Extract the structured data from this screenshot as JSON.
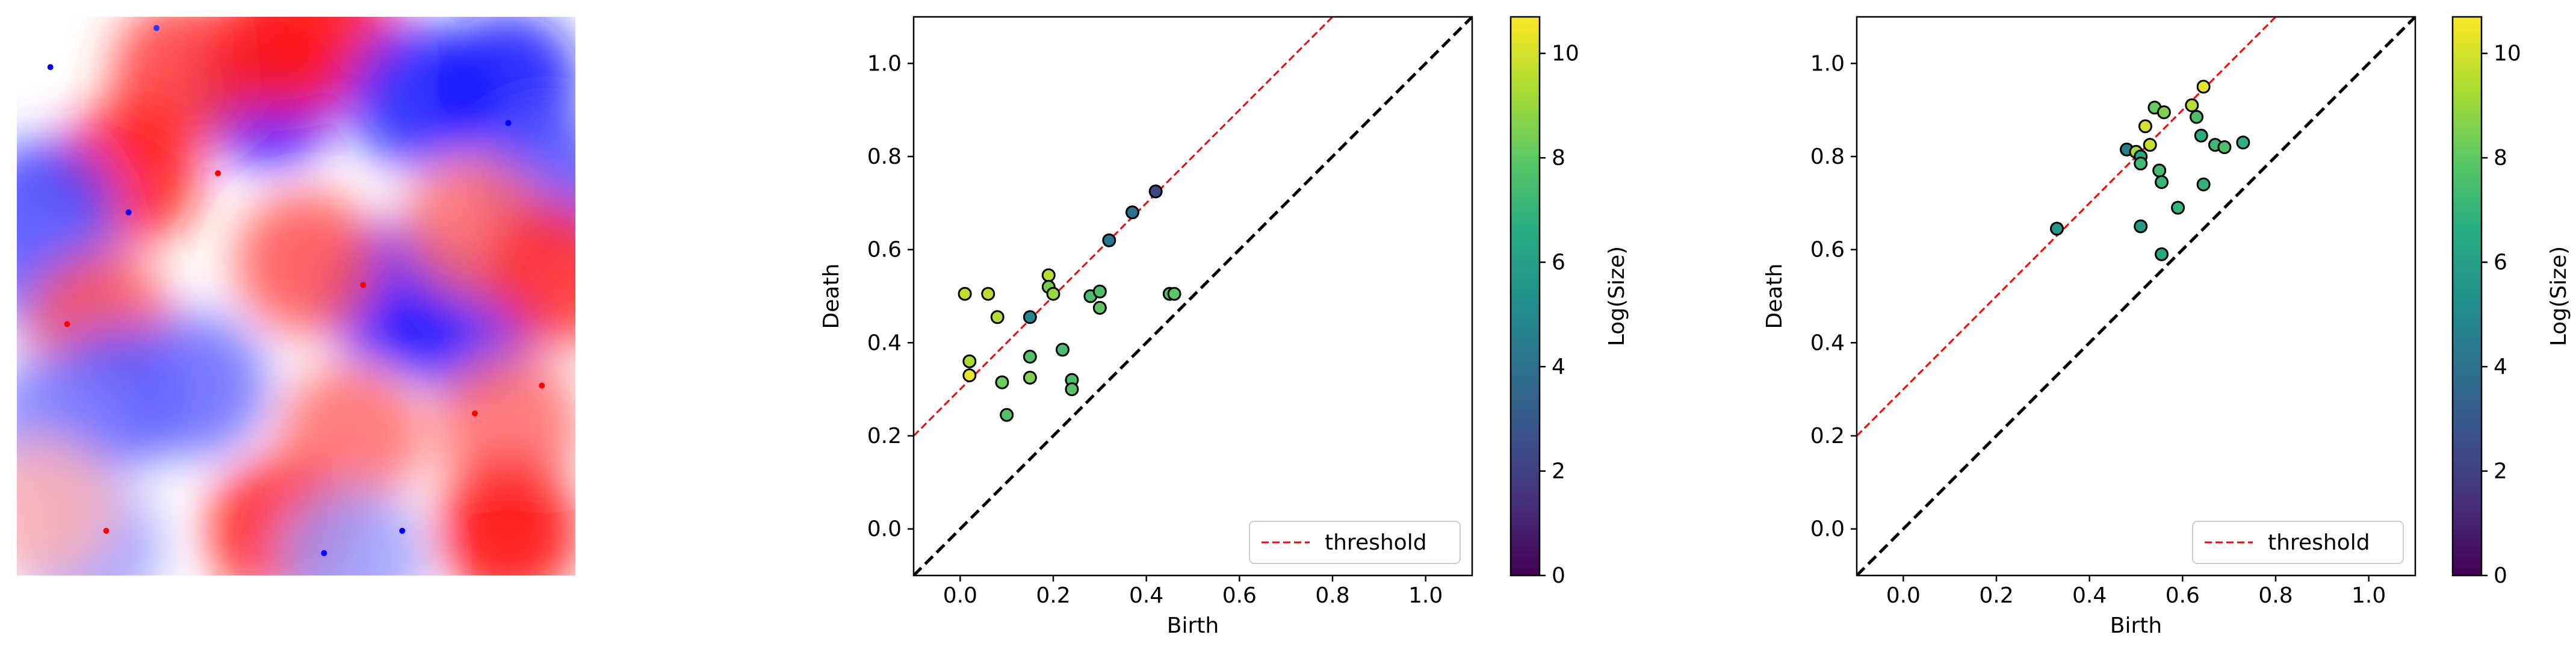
{
  "chart_data": [
    {
      "type": "heatmap",
      "colormap": "seismic",
      "colors": {
        "negative": "#0000ff",
        "zero": "#ffffff",
        "positive": "#ff0000"
      },
      "xlabel": "",
      "ylabel": "",
      "grid": false,
      "blobs": [
        {
          "x": 0.45,
          "y": 0.14,
          "v": -1.0
        },
        {
          "x": 0.3,
          "y": 0.1,
          "v": 0.8
        },
        {
          "x": 0.48,
          "y": 0.05,
          "v": 0.9
        },
        {
          "x": 0.55,
          "y": 0.02,
          "v": 0.9
        },
        {
          "x": 0.2,
          "y": 0.28,
          "v": 0.95
        },
        {
          "x": 0.05,
          "y": 0.35,
          "v": -0.8
        },
        {
          "x": 0.05,
          "y": 0.44,
          "v": -0.6
        },
        {
          "x": 0.72,
          "y": 0.14,
          "v": -0.9
        },
        {
          "x": 0.88,
          "y": 0.12,
          "v": -0.95
        },
        {
          "x": 0.95,
          "y": 0.3,
          "v": -0.7
        },
        {
          "x": 0.68,
          "y": 0.5,
          "v": -1.0
        },
        {
          "x": 0.8,
          "y": 0.55,
          "v": -0.9
        },
        {
          "x": 0.52,
          "y": 0.44,
          "v": 0.7
        },
        {
          "x": 0.82,
          "y": 0.38,
          "v": 0.6
        },
        {
          "x": 0.97,
          "y": 0.46,
          "v": 0.85
        },
        {
          "x": 0.15,
          "y": 0.55,
          "v": 0.7
        },
        {
          "x": 0.18,
          "y": 0.68,
          "v": -0.7
        },
        {
          "x": 0.32,
          "y": 0.66,
          "v": -0.6
        },
        {
          "x": 0.07,
          "y": 0.73,
          "v": -0.5
        },
        {
          "x": 0.6,
          "y": 0.75,
          "v": 0.6
        },
        {
          "x": 0.88,
          "y": 0.73,
          "v": 0.6
        },
        {
          "x": 0.47,
          "y": 0.92,
          "v": 0.95
        },
        {
          "x": 0.88,
          "y": 0.92,
          "v": 1.0
        },
        {
          "x": 0.6,
          "y": 0.97,
          "v": -0.4
        },
        {
          "x": 0.13,
          "y": 0.95,
          "v": -0.4
        },
        {
          "x": 0.05,
          "y": 0.88,
          "v": 0.3
        }
      ],
      "speckles": [
        {
          "x": 0.06,
          "y": 0.09,
          "v": -1.0
        },
        {
          "x": 0.25,
          "y": 0.02,
          "v": -0.8
        },
        {
          "x": 0.36,
          "y": 0.28,
          "v": 1.0
        },
        {
          "x": 0.09,
          "y": 0.55,
          "v": 1.0
        },
        {
          "x": 0.88,
          "y": 0.19,
          "v": -1.0
        },
        {
          "x": 0.82,
          "y": 0.71,
          "v": 1.0
        },
        {
          "x": 0.55,
          "y": 0.96,
          "v": -1.0
        },
        {
          "x": 0.69,
          "y": 0.92,
          "v": -1.0
        },
        {
          "x": 0.94,
          "y": 0.66,
          "v": 1.0
        },
        {
          "x": 0.2,
          "y": 0.35,
          "v": -1.0
        },
        {
          "x": 0.62,
          "y": 0.48,
          "v": 1.0
        },
        {
          "x": 0.16,
          "y": 0.92,
          "v": 1.0
        }
      ]
    },
    {
      "type": "scatter",
      "title": "",
      "xlabel": "Birth",
      "ylabel": "Death",
      "xlim": [
        -0.1,
        1.1
      ],
      "ylim": [
        -0.1,
        1.1
      ],
      "xticks": [
        "0.0",
        "0.2",
        "0.4",
        "0.6",
        "0.8",
        "1.0"
      ],
      "yticks": [
        "0.0",
        "0.2",
        "0.4",
        "0.6",
        "0.8",
        "1.0"
      ],
      "grid": false,
      "diagonal": {
        "style": "dashed",
        "color": "#000000"
      },
      "threshold": {
        "offset": 0.3,
        "color": "#ff0000",
        "style": "dashed"
      },
      "legend": {
        "position": "bottom-right",
        "entries": [
          "threshold"
        ]
      },
      "colorbar": {
        "label": "Log(Size)",
        "range": [
          0,
          10.7
        ],
        "ticks": [
          "0",
          "2",
          "4",
          "6",
          "8",
          "10"
        ],
        "colormap": "viridis"
      },
      "points": [
        {
          "x": 0.01,
          "y": 0.505,
          "c": 9.7
        },
        {
          "x": 0.06,
          "y": 0.505,
          "c": 9.6
        },
        {
          "x": 0.08,
          "y": 0.455,
          "c": 9.5
        },
        {
          "x": 0.02,
          "y": 0.36,
          "c": 9.3
        },
        {
          "x": 0.02,
          "y": 0.33,
          "c": 10.3
        },
        {
          "x": 0.09,
          "y": 0.315,
          "c": 8.3
        },
        {
          "x": 0.1,
          "y": 0.245,
          "c": 7.7
        },
        {
          "x": 0.15,
          "y": 0.455,
          "c": 5.0
        },
        {
          "x": 0.15,
          "y": 0.37,
          "c": 7.7
        },
        {
          "x": 0.15,
          "y": 0.325,
          "c": 8.6
        },
        {
          "x": 0.19,
          "y": 0.545,
          "c": 9.5
        },
        {
          "x": 0.19,
          "y": 0.52,
          "c": 8.4
        },
        {
          "x": 0.2,
          "y": 0.505,
          "c": 9.0
        },
        {
          "x": 0.22,
          "y": 0.385,
          "c": 7.5
        },
        {
          "x": 0.24,
          "y": 0.32,
          "c": 7.6
        },
        {
          "x": 0.24,
          "y": 0.3,
          "c": 7.8
        },
        {
          "x": 0.28,
          "y": 0.5,
          "c": 7.5
        },
        {
          "x": 0.3,
          "y": 0.51,
          "c": 7.6
        },
        {
          "x": 0.3,
          "y": 0.475,
          "c": 8.0
        },
        {
          "x": 0.32,
          "y": 0.62,
          "c": 4.2
        },
        {
          "x": 0.37,
          "y": 0.68,
          "c": 4.0
        },
        {
          "x": 0.42,
          "y": 0.725,
          "c": 2.2
        },
        {
          "x": 0.45,
          "y": 0.505,
          "c": 7.6
        },
        {
          "x": 0.46,
          "y": 0.505,
          "c": 7.9
        }
      ]
    },
    {
      "type": "scatter",
      "title": "",
      "xlabel": "Birth",
      "ylabel": "Death",
      "xlim": [
        -0.1,
        1.1
      ],
      "ylim": [
        -0.1,
        1.1
      ],
      "xticks": [
        "0.0",
        "0.2",
        "0.4",
        "0.6",
        "0.8",
        "1.0"
      ],
      "yticks": [
        "0.0",
        "0.2",
        "0.4",
        "0.6",
        "0.8",
        "1.0"
      ],
      "grid": false,
      "diagonal": {
        "style": "dashed",
        "color": "#000000"
      },
      "threshold": {
        "offset": 0.3,
        "color": "#ff0000",
        "style": "dashed"
      },
      "legend": {
        "position": "bottom-right",
        "entries": [
          "threshold"
        ]
      },
      "colorbar": {
        "label": "Log(Size)",
        "range": [
          0,
          10.7
        ],
        "ticks": [
          "0",
          "2",
          "4",
          "6",
          "8",
          "10"
        ],
        "colormap": "viridis"
      },
      "points": [
        {
          "x": 0.33,
          "y": 0.645,
          "c": 5.7
        },
        {
          "x": 0.48,
          "y": 0.815,
          "c": 4.5
        },
        {
          "x": 0.5,
          "y": 0.81,
          "c": 9.3
        },
        {
          "x": 0.51,
          "y": 0.8,
          "c": 6.5
        },
        {
          "x": 0.51,
          "y": 0.785,
          "c": 7.3
        },
        {
          "x": 0.51,
          "y": 0.65,
          "c": 5.8
        },
        {
          "x": 0.52,
          "y": 0.865,
          "c": 10.0
        },
        {
          "x": 0.53,
          "y": 0.825,
          "c": 9.8
        },
        {
          "x": 0.54,
          "y": 0.905,
          "c": 8.2
        },
        {
          "x": 0.55,
          "y": 0.77,
          "c": 7.4
        },
        {
          "x": 0.555,
          "y": 0.745,
          "c": 7.1
        },
        {
          "x": 0.56,
          "y": 0.895,
          "c": 8.6
        },
        {
          "x": 0.555,
          "y": 0.59,
          "c": 6.4
        },
        {
          "x": 0.59,
          "y": 0.69,
          "c": 7.0
        },
        {
          "x": 0.62,
          "y": 0.91,
          "c": 9.6
        },
        {
          "x": 0.63,
          "y": 0.885,
          "c": 7.6
        },
        {
          "x": 0.645,
          "y": 0.95,
          "c": 10.3
        },
        {
          "x": 0.64,
          "y": 0.845,
          "c": 6.6
        },
        {
          "x": 0.645,
          "y": 0.74,
          "c": 6.9
        },
        {
          "x": 0.67,
          "y": 0.825,
          "c": 7.2
        },
        {
          "x": 0.69,
          "y": 0.82,
          "c": 7.6
        },
        {
          "x": 0.73,
          "y": 0.83,
          "c": 6.8
        }
      ]
    }
  ]
}
